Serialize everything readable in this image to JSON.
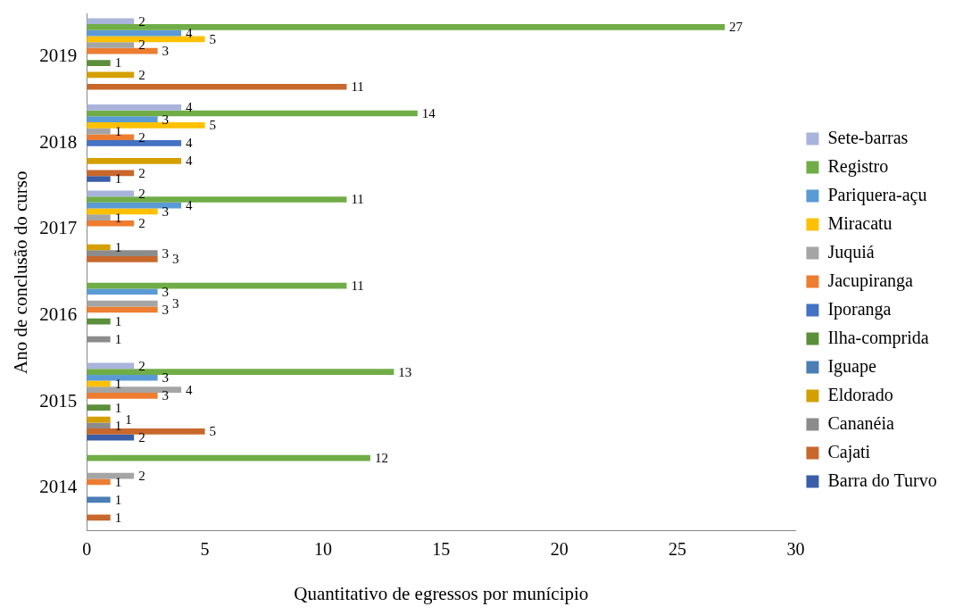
{
  "chart_data": {
    "type": "bar",
    "orientation": "horizontal",
    "xlabel": "Quantitativo de egressos por munícipio",
    "ylabel": "Ano de conclusão do curso",
    "categories": [
      "2019",
      "2018",
      "2017",
      "2016",
      "2015",
      "2014"
    ],
    "series": [
      {
        "name": "Sete-barras",
        "color": "#a9b4dc",
        "values": [
          2,
          4,
          2,
          null,
          2,
          null
        ]
      },
      {
        "name": "Registro",
        "color": "#70ad47",
        "values": [
          27,
          14,
          11,
          11,
          13,
          12
        ]
      },
      {
        "name": "Pariquera-açu",
        "color": "#5b9bd5",
        "values": [
          4,
          3,
          4,
          3,
          3,
          null
        ]
      },
      {
        "name": "Miracatu",
        "color": "#ffc000",
        "values": [
          5,
          5,
          3,
          null,
          1,
          null
        ]
      },
      {
        "name": "Juquiá",
        "color": "#a5a5a5",
        "values": [
          2,
          1,
          1,
          3,
          4,
          2
        ]
      },
      {
        "name": "Jacupiranga",
        "color": "#ed7d31",
        "values": [
          3,
          2,
          2,
          3,
          3,
          1
        ]
      },
      {
        "name": "Iporanga",
        "color": "#4472c4",
        "values": [
          null,
          4,
          null,
          null,
          null,
          null
        ]
      },
      {
        "name": "Ilha-comprida",
        "color": "#5b8f3a",
        "values": [
          1,
          null,
          null,
          1,
          1,
          null
        ]
      },
      {
        "name": "Iguape",
        "color": "#4a7eb5",
        "values": [
          null,
          null,
          null,
          null,
          null,
          1
        ]
      },
      {
        "name": "Eldorado",
        "color": "#d4a000",
        "values": [
          2,
          4,
          1,
          null,
          1,
          null
        ]
      },
      {
        "name": "Cananéia",
        "color": "#8c8c8c",
        "values": [
          null,
          null,
          3,
          1,
          1,
          null
        ]
      },
      {
        "name": "Cajati",
        "color": "#c8682c",
        "values": [
          11,
          2,
          3,
          null,
          5,
          1
        ]
      },
      {
        "name": "Barra do Turvo",
        "color": "#3a5ea8",
        "values": [
          null,
          1,
          null,
          null,
          2,
          null
        ]
      }
    ],
    "xlim": [
      0,
      30
    ],
    "xticks": [
      0,
      5,
      10,
      15,
      20,
      25,
      30
    ],
    "grid": false,
    "legend": "right",
    "data_labels": true
  }
}
